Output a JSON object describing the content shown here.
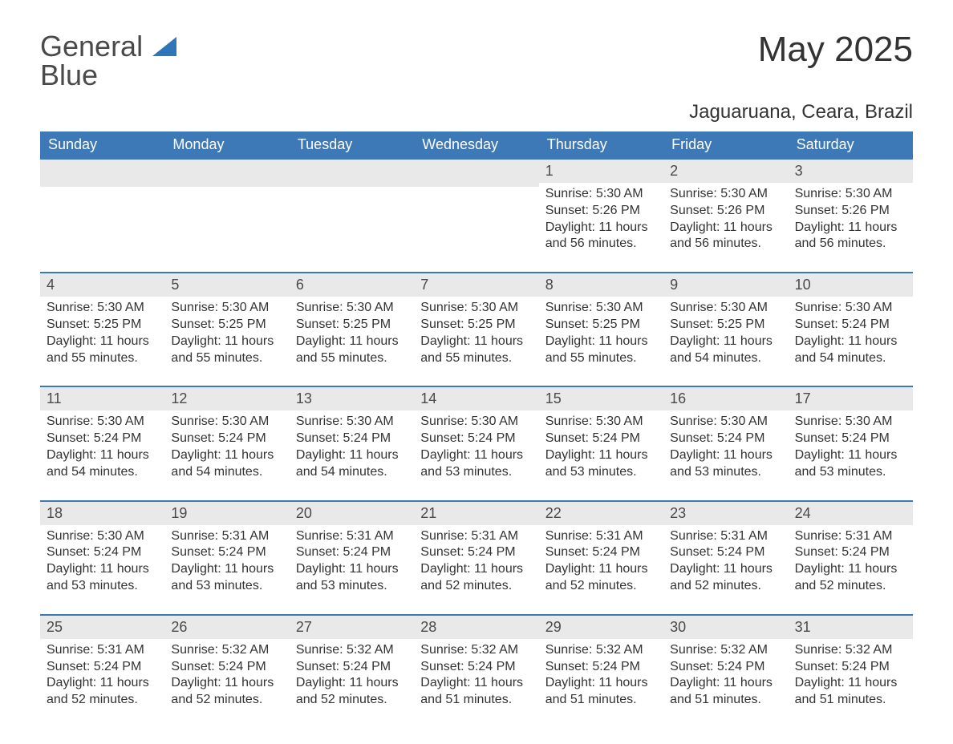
{
  "logo": {
    "line1": "General",
    "line2": "Blue",
    "line1_color": "#4a4a4a",
    "line2_color": "#2f76b8",
    "triangle_color": "#2f76b8"
  },
  "title": "May 2025",
  "location": "Jaguaruana, Ceara, Brazil",
  "styling": {
    "header_bg": "#3d79b7",
    "header_text_color": "#ffffff",
    "date_bar_bg": "#e9e9e9",
    "date_bar_text": "#4a4a4a",
    "body_text_color": "#333333",
    "week_divider_color": "#3d79b7",
    "page_bg": "#ffffff",
    "title_fontsize": 44,
    "location_fontsize": 24,
    "header_fontsize": 18,
    "day_fontsize": 18,
    "content_fontsize": 16,
    "columns": 7,
    "rows": 5
  },
  "day_names": [
    "Sunday",
    "Monday",
    "Tuesday",
    "Wednesday",
    "Thursday",
    "Friday",
    "Saturday"
  ],
  "weeks": [
    [
      {
        "day": "",
        "sunrise": "",
        "sunset": "",
        "daylight": ""
      },
      {
        "day": "",
        "sunrise": "",
        "sunset": "",
        "daylight": ""
      },
      {
        "day": "",
        "sunrise": "",
        "sunset": "",
        "daylight": ""
      },
      {
        "day": "",
        "sunrise": "",
        "sunset": "",
        "daylight": ""
      },
      {
        "day": "1",
        "sunrise": "Sunrise: 5:30 AM",
        "sunset": "Sunset: 5:26 PM",
        "daylight": "Daylight: 11 hours and 56 minutes."
      },
      {
        "day": "2",
        "sunrise": "Sunrise: 5:30 AM",
        "sunset": "Sunset: 5:26 PM",
        "daylight": "Daylight: 11 hours and 56 minutes."
      },
      {
        "day": "3",
        "sunrise": "Sunrise: 5:30 AM",
        "sunset": "Sunset: 5:26 PM",
        "daylight": "Daylight: 11 hours and 56 minutes."
      }
    ],
    [
      {
        "day": "4",
        "sunrise": "Sunrise: 5:30 AM",
        "sunset": "Sunset: 5:25 PM",
        "daylight": "Daylight: 11 hours and 55 minutes."
      },
      {
        "day": "5",
        "sunrise": "Sunrise: 5:30 AM",
        "sunset": "Sunset: 5:25 PM",
        "daylight": "Daylight: 11 hours and 55 minutes."
      },
      {
        "day": "6",
        "sunrise": "Sunrise: 5:30 AM",
        "sunset": "Sunset: 5:25 PM",
        "daylight": "Daylight: 11 hours and 55 minutes."
      },
      {
        "day": "7",
        "sunrise": "Sunrise: 5:30 AM",
        "sunset": "Sunset: 5:25 PM",
        "daylight": "Daylight: 11 hours and 55 minutes."
      },
      {
        "day": "8",
        "sunrise": "Sunrise: 5:30 AM",
        "sunset": "Sunset: 5:25 PM",
        "daylight": "Daylight: 11 hours and 55 minutes."
      },
      {
        "day": "9",
        "sunrise": "Sunrise: 5:30 AM",
        "sunset": "Sunset: 5:25 PM",
        "daylight": "Daylight: 11 hours and 54 minutes."
      },
      {
        "day": "10",
        "sunrise": "Sunrise: 5:30 AM",
        "sunset": "Sunset: 5:24 PM",
        "daylight": "Daylight: 11 hours and 54 minutes."
      }
    ],
    [
      {
        "day": "11",
        "sunrise": "Sunrise: 5:30 AM",
        "sunset": "Sunset: 5:24 PM",
        "daylight": "Daylight: 11 hours and 54 minutes."
      },
      {
        "day": "12",
        "sunrise": "Sunrise: 5:30 AM",
        "sunset": "Sunset: 5:24 PM",
        "daylight": "Daylight: 11 hours and 54 minutes."
      },
      {
        "day": "13",
        "sunrise": "Sunrise: 5:30 AM",
        "sunset": "Sunset: 5:24 PM",
        "daylight": "Daylight: 11 hours and 54 minutes."
      },
      {
        "day": "14",
        "sunrise": "Sunrise: 5:30 AM",
        "sunset": "Sunset: 5:24 PM",
        "daylight": "Daylight: 11 hours and 53 minutes."
      },
      {
        "day": "15",
        "sunrise": "Sunrise: 5:30 AM",
        "sunset": "Sunset: 5:24 PM",
        "daylight": "Daylight: 11 hours and 53 minutes."
      },
      {
        "day": "16",
        "sunrise": "Sunrise: 5:30 AM",
        "sunset": "Sunset: 5:24 PM",
        "daylight": "Daylight: 11 hours and 53 minutes."
      },
      {
        "day": "17",
        "sunrise": "Sunrise: 5:30 AM",
        "sunset": "Sunset: 5:24 PM",
        "daylight": "Daylight: 11 hours and 53 minutes."
      }
    ],
    [
      {
        "day": "18",
        "sunrise": "Sunrise: 5:30 AM",
        "sunset": "Sunset: 5:24 PM",
        "daylight": "Daylight: 11 hours and 53 minutes."
      },
      {
        "day": "19",
        "sunrise": "Sunrise: 5:31 AM",
        "sunset": "Sunset: 5:24 PM",
        "daylight": "Daylight: 11 hours and 53 minutes."
      },
      {
        "day": "20",
        "sunrise": "Sunrise: 5:31 AM",
        "sunset": "Sunset: 5:24 PM",
        "daylight": "Daylight: 11 hours and 53 minutes."
      },
      {
        "day": "21",
        "sunrise": "Sunrise: 5:31 AM",
        "sunset": "Sunset: 5:24 PM",
        "daylight": "Daylight: 11 hours and 52 minutes."
      },
      {
        "day": "22",
        "sunrise": "Sunrise: 5:31 AM",
        "sunset": "Sunset: 5:24 PM",
        "daylight": "Daylight: 11 hours and 52 minutes."
      },
      {
        "day": "23",
        "sunrise": "Sunrise: 5:31 AM",
        "sunset": "Sunset: 5:24 PM",
        "daylight": "Daylight: 11 hours and 52 minutes."
      },
      {
        "day": "24",
        "sunrise": "Sunrise: 5:31 AM",
        "sunset": "Sunset: 5:24 PM",
        "daylight": "Daylight: 11 hours and 52 minutes."
      }
    ],
    [
      {
        "day": "25",
        "sunrise": "Sunrise: 5:31 AM",
        "sunset": "Sunset: 5:24 PM",
        "daylight": "Daylight: 11 hours and 52 minutes."
      },
      {
        "day": "26",
        "sunrise": "Sunrise: 5:32 AM",
        "sunset": "Sunset: 5:24 PM",
        "daylight": "Daylight: 11 hours and 52 minutes."
      },
      {
        "day": "27",
        "sunrise": "Sunrise: 5:32 AM",
        "sunset": "Sunset: 5:24 PM",
        "daylight": "Daylight: 11 hours and 52 minutes."
      },
      {
        "day": "28",
        "sunrise": "Sunrise: 5:32 AM",
        "sunset": "Sunset: 5:24 PM",
        "daylight": "Daylight: 11 hours and 51 minutes."
      },
      {
        "day": "29",
        "sunrise": "Sunrise: 5:32 AM",
        "sunset": "Sunset: 5:24 PM",
        "daylight": "Daylight: 11 hours and 51 minutes."
      },
      {
        "day": "30",
        "sunrise": "Sunrise: 5:32 AM",
        "sunset": "Sunset: 5:24 PM",
        "daylight": "Daylight: 11 hours and 51 minutes."
      },
      {
        "day": "31",
        "sunrise": "Sunrise: 5:32 AM",
        "sunset": "Sunset: 5:24 PM",
        "daylight": "Daylight: 11 hours and 51 minutes."
      }
    ]
  ]
}
